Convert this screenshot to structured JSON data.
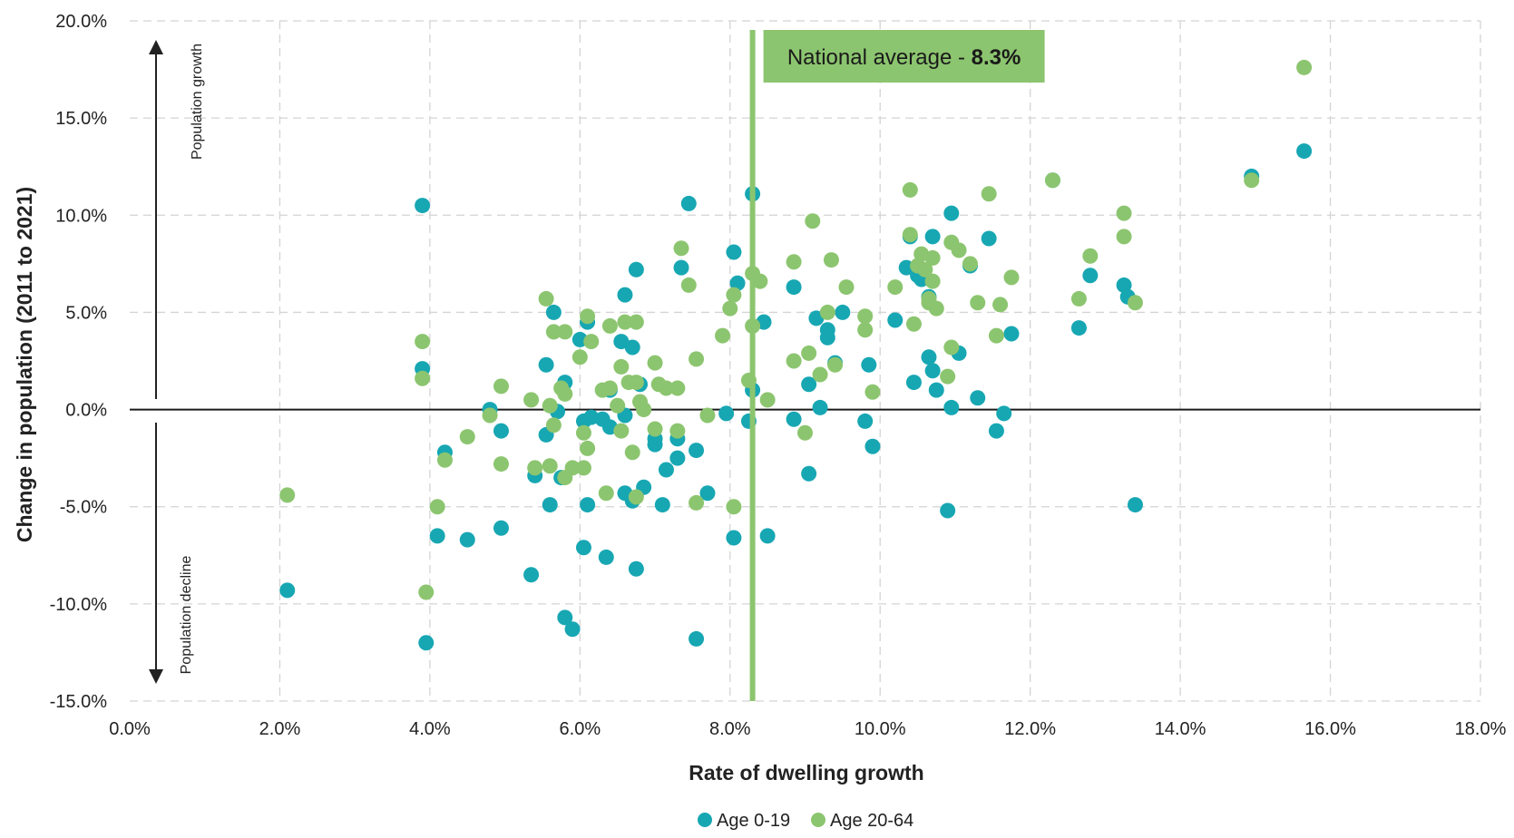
{
  "chart_data": {
    "type": "scatter",
    "xlabel": "Rate of dwelling growth",
    "ylabel": "Change in population (2011 to 2021)",
    "xlim": [
      0,
      18
    ],
    "ylim": [
      -15,
      20
    ],
    "x_ticks": [
      0,
      2,
      4,
      6,
      8,
      10,
      12,
      14,
      16,
      18
    ],
    "y_ticks": [
      -15,
      -10,
      -5,
      0,
      5,
      10,
      15,
      20
    ],
    "x_tick_labels": [
      "0.0%",
      "2.0%",
      "4.0%",
      "6.0%",
      "8.0%",
      "10.0%",
      "12.0%",
      "14.0%",
      "16.0%",
      "18.0%"
    ],
    "y_tick_labels": [
      "-15.0%",
      "-10.0%",
      "-5.0%",
      "0.0%",
      "5.0%",
      "10.0%",
      "15.0%",
      "20.0%"
    ],
    "grid": true,
    "legend_position": "bottom",
    "annotations": {
      "growth": "Population growth",
      "decline": "Population decline",
      "avg_prefix": "National average - ",
      "avg_value": "8.3%"
    },
    "reference_line": {
      "x": 8.3,
      "color": "#8CC56F"
    },
    "series": [
      {
        "name": "Age 0-19",
        "color": "#17A7B3",
        "points": [
          [
            2.1,
            -9.3
          ],
          [
            3.9,
            10.5
          ],
          [
            3.9,
            2.1
          ],
          [
            3.95,
            -12.0
          ],
          [
            4.1,
            -6.5
          ],
          [
            4.2,
            -2.2
          ],
          [
            4.5,
            -6.7
          ],
          [
            4.8,
            0.0
          ],
          [
            4.95,
            -1.1
          ],
          [
            4.95,
            -6.1
          ],
          [
            5.35,
            -8.5
          ],
          [
            5.4,
            -3.4
          ],
          [
            5.55,
            2.3
          ],
          [
            5.6,
            -4.9
          ],
          [
            5.55,
            -1.3
          ],
          [
            5.65,
            5.0
          ],
          [
            5.7,
            -0.1
          ],
          [
            5.75,
            -3.5
          ],
          [
            5.8,
            1.4
          ],
          [
            5.8,
            -10.7
          ],
          [
            5.9,
            -11.3
          ],
          [
            6.0,
            3.6
          ],
          [
            6.05,
            -7.1
          ],
          [
            6.05,
            -0.6
          ],
          [
            6.1,
            4.5
          ],
          [
            6.1,
            -4.9
          ],
          [
            6.15,
            -0.4
          ],
          [
            6.3,
            -0.5
          ],
          [
            6.35,
            -7.6
          ],
          [
            6.4,
            -0.9
          ],
          [
            6.4,
            1.0
          ],
          [
            6.55,
            3.5
          ],
          [
            6.6,
            5.9
          ],
          [
            6.6,
            -0.3
          ],
          [
            6.6,
            -4.3
          ],
          [
            6.7,
            3.2
          ],
          [
            6.75,
            7.2
          ],
          [
            6.7,
            -4.7
          ],
          [
            6.75,
            -8.2
          ],
          [
            6.8,
            1.3
          ],
          [
            6.85,
            -4.0
          ],
          [
            7.0,
            -1.5
          ],
          [
            7.0,
            -1.8
          ],
          [
            7.1,
            -4.9
          ],
          [
            7.15,
            -3.1
          ],
          [
            7.3,
            -1.5
          ],
          [
            7.3,
            -2.5
          ],
          [
            7.35,
            7.3
          ],
          [
            7.45,
            10.6
          ],
          [
            7.55,
            -11.8
          ],
          [
            7.55,
            -2.1
          ],
          [
            7.7,
            -4.3
          ],
          [
            7.95,
            -0.2
          ],
          [
            8.05,
            8.1
          ],
          [
            8.1,
            6.5
          ],
          [
            8.05,
            -6.6
          ],
          [
            8.25,
            -0.6
          ],
          [
            8.3,
            11.1
          ],
          [
            8.3,
            1.0
          ],
          [
            8.45,
            4.5
          ],
          [
            8.5,
            -6.5
          ],
          [
            8.85,
            6.3
          ],
          [
            8.85,
            -0.5
          ],
          [
            9.05,
            -3.3
          ],
          [
            9.05,
            1.3
          ],
          [
            9.15,
            4.7
          ],
          [
            9.2,
            0.1
          ],
          [
            9.3,
            3.7
          ],
          [
            9.3,
            4.1
          ],
          [
            9.4,
            2.4
          ],
          [
            9.5,
            5.0
          ],
          [
            9.8,
            -0.6
          ],
          [
            9.85,
            2.3
          ],
          [
            9.9,
            -1.9
          ],
          [
            10.2,
            4.6
          ],
          [
            10.35,
            7.3
          ],
          [
            10.4,
            8.9
          ],
          [
            10.45,
            1.4
          ],
          [
            10.5,
            6.9
          ],
          [
            10.55,
            6.7
          ],
          [
            10.65,
            5.8
          ],
          [
            10.65,
            2.7
          ],
          [
            10.7,
            8.9
          ],
          [
            10.7,
            2.0
          ],
          [
            10.75,
            1.0
          ],
          [
            10.9,
            -5.2
          ],
          [
            10.95,
            10.1
          ],
          [
            10.95,
            0.1
          ],
          [
            11.05,
            2.9
          ],
          [
            11.2,
            7.4
          ],
          [
            11.3,
            0.6
          ],
          [
            11.45,
            8.8
          ],
          [
            11.55,
            -1.1
          ],
          [
            11.65,
            -0.2
          ],
          [
            11.75,
            3.9
          ],
          [
            12.3,
            11.8
          ],
          [
            12.65,
            4.2
          ],
          [
            12.8,
            6.9
          ],
          [
            13.25,
            6.4
          ],
          [
            13.3,
            5.8
          ],
          [
            13.4,
            -4.9
          ],
          [
            14.95,
            12.0
          ],
          [
            15.65,
            13.3
          ]
        ]
      },
      {
        "name": "Age 20-64",
        "color": "#8CC56F",
        "points": [
          [
            2.1,
            -4.4
          ],
          [
            3.9,
            3.5
          ],
          [
            3.9,
            1.6
          ],
          [
            3.95,
            -9.4
          ],
          [
            4.1,
            -5.0
          ],
          [
            4.2,
            -2.6
          ],
          [
            4.5,
            -1.4
          ],
          [
            4.8,
            -0.3
          ],
          [
            4.95,
            1.2
          ],
          [
            4.95,
            -2.8
          ],
          [
            5.35,
            0.5
          ],
          [
            5.4,
            -3.0
          ],
          [
            5.55,
            5.7
          ],
          [
            5.6,
            0.2
          ],
          [
            5.6,
            -2.9
          ],
          [
            5.65,
            -0.8
          ],
          [
            5.65,
            4.0
          ],
          [
            5.75,
            1.1
          ],
          [
            5.8,
            0.8
          ],
          [
            5.8,
            4.0
          ],
          [
            5.8,
            -3.5
          ],
          [
            5.9,
            -3.0
          ],
          [
            6.0,
            2.7
          ],
          [
            6.05,
            -3.0
          ],
          [
            6.05,
            -1.2
          ],
          [
            6.1,
            -2.0
          ],
          [
            6.1,
            4.8
          ],
          [
            6.15,
            3.5
          ],
          [
            6.3,
            1.0
          ],
          [
            6.35,
            -4.3
          ],
          [
            6.4,
            1.1
          ],
          [
            6.4,
            4.3
          ],
          [
            6.5,
            0.2
          ],
          [
            6.55,
            -1.1
          ],
          [
            6.55,
            2.2
          ],
          [
            6.6,
            4.5
          ],
          [
            6.65,
            1.4
          ],
          [
            6.7,
            -2.2
          ],
          [
            6.75,
            4.5
          ],
          [
            6.75,
            -4.5
          ],
          [
            6.75,
            1.4
          ],
          [
            6.8,
            0.4
          ],
          [
            6.85,
            0.0
          ],
          [
            7.0,
            2.4
          ],
          [
            7.0,
            -1.0
          ],
          [
            7.05,
            1.3
          ],
          [
            7.15,
            1.1
          ],
          [
            7.3,
            1.1
          ],
          [
            7.3,
            -1.1
          ],
          [
            7.35,
            8.3
          ],
          [
            7.45,
            6.4
          ],
          [
            7.55,
            2.6
          ],
          [
            7.55,
            -4.8
          ],
          [
            7.7,
            -0.3
          ],
          [
            7.9,
            3.8
          ],
          [
            8.0,
            5.2
          ],
          [
            8.05,
            5.9
          ],
          [
            8.05,
            -5.0
          ],
          [
            8.25,
            1.5
          ],
          [
            8.3,
            7.0
          ],
          [
            8.3,
            4.3
          ],
          [
            8.4,
            6.6
          ],
          [
            8.5,
            0.5
          ],
          [
            8.85,
            7.6
          ],
          [
            8.85,
            2.5
          ],
          [
            9.0,
            -1.2
          ],
          [
            9.05,
            2.9
          ],
          [
            9.1,
            9.7
          ],
          [
            9.2,
            1.8
          ],
          [
            9.3,
            5.0
          ],
          [
            9.35,
            7.7
          ],
          [
            9.4,
            2.3
          ],
          [
            9.55,
            6.3
          ],
          [
            9.8,
            4.8
          ],
          [
            9.8,
            4.1
          ],
          [
            9.9,
            0.9
          ],
          [
            10.2,
            6.3
          ],
          [
            10.4,
            9.0
          ],
          [
            10.4,
            11.3
          ],
          [
            10.45,
            4.4
          ],
          [
            10.5,
            7.4
          ],
          [
            10.55,
            8.0
          ],
          [
            10.6,
            7.2
          ],
          [
            10.65,
            5.7
          ],
          [
            10.65,
            5.5
          ],
          [
            10.7,
            7.8
          ],
          [
            10.7,
            6.6
          ],
          [
            10.75,
            5.2
          ],
          [
            10.9,
            1.7
          ],
          [
            10.95,
            8.6
          ],
          [
            10.95,
            3.2
          ],
          [
            11.05,
            8.2
          ],
          [
            11.2,
            7.5
          ],
          [
            11.3,
            5.5
          ],
          [
            11.45,
            11.1
          ],
          [
            11.55,
            3.8
          ],
          [
            11.6,
            5.4
          ],
          [
            11.75,
            6.8
          ],
          [
            12.3,
            11.8
          ],
          [
            12.65,
            5.7
          ],
          [
            12.8,
            7.9
          ],
          [
            13.25,
            10.1
          ],
          [
            13.25,
            8.9
          ],
          [
            13.4,
            5.5
          ],
          [
            14.95,
            11.8
          ],
          [
            15.65,
            17.6
          ]
        ]
      }
    ]
  }
}
